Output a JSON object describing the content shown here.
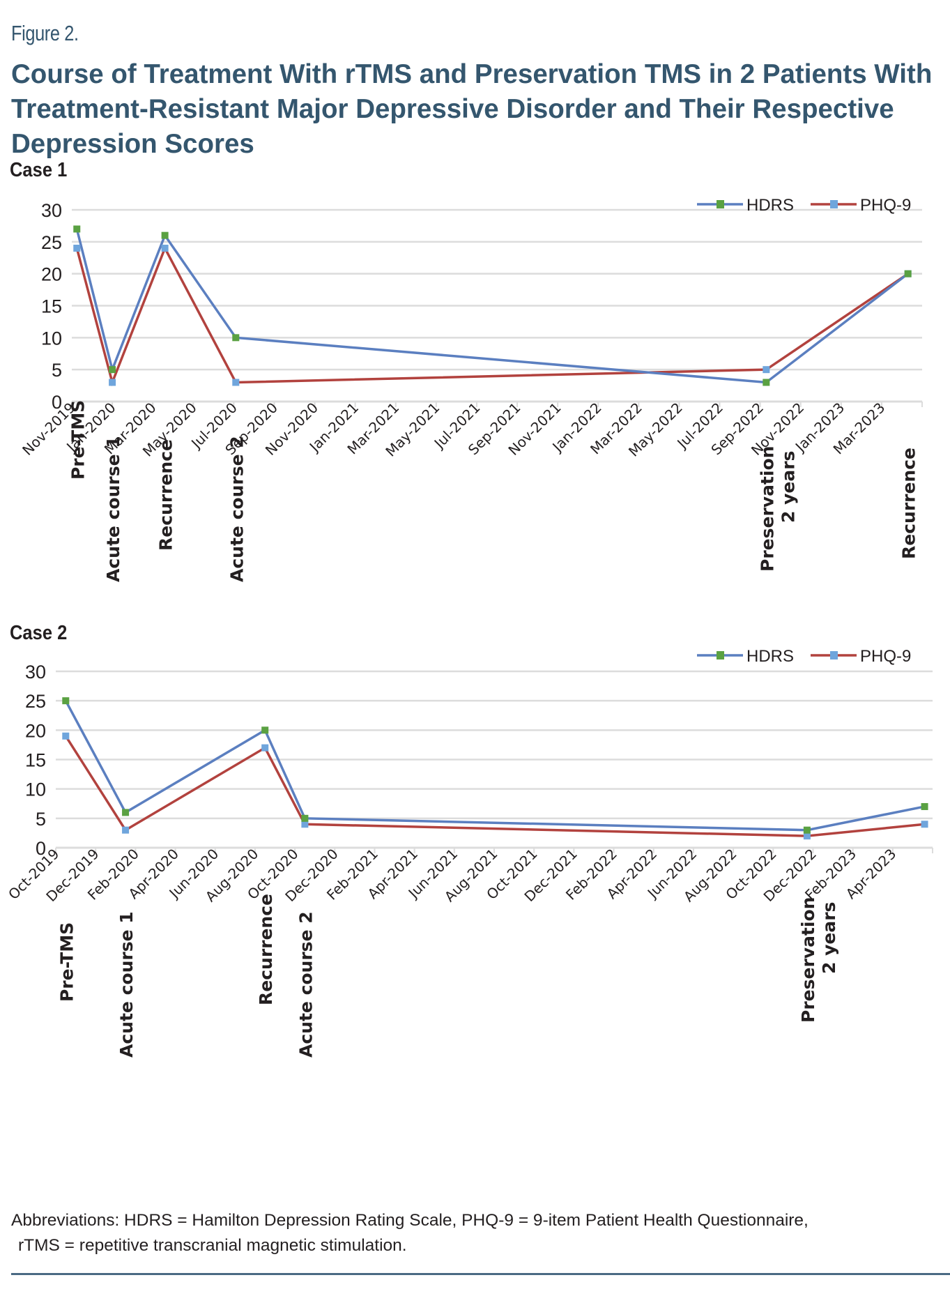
{
  "figure": {
    "label": "Figure 2.",
    "title": "Course of Treatment With rTMS and Preservation TMS in 2 Patients With Treatment-Resistant Major Depressive Disorder and Their Respective Depression Scores",
    "abbreviations_line1": "Abbreviations: HDRS = Hamilton Depression Rating Scale, PHQ-9 = 9-item Patient Health Questionnaire,",
    "abbreviations_line2": "rTMS = repetitive transcranial magnetic stimulation."
  },
  "colors": {
    "title": "#34566e",
    "hdrs_line": "#5b7fc0",
    "hdrs_marker": "#5aa142",
    "phq9_line": "#b2423e",
    "phq9_marker": "#6fa5dc",
    "grid": "#dcdcdc"
  },
  "chart_data": [
    {
      "type": "line",
      "title": "Case 1",
      "xlabel": "",
      "ylabel": "",
      "ylim": [
        0,
        30
      ],
      "yticks": [
        0,
        5,
        10,
        15,
        20,
        25,
        30
      ],
      "grid": true,
      "legend": "top-right",
      "x_axis_type": "date",
      "x_range": [
        "2019-11",
        "2023-05"
      ],
      "x_tick_labels": [
        "Nov-2019",
        "Jan-2020",
        "Mar-2020",
        "May-2020",
        "Jul-2020",
        "Sep-2020",
        "Nov-2020",
        "Jan-2021",
        "Mar-2021",
        "May-2021",
        "Jul-2021",
        "Sep-2021",
        "Nov-2021",
        "Jan-2022",
        "Mar-2022",
        "May-2022",
        "Jul-2022",
        "Sep-2022",
        "Nov-2022",
        "Jan-2023",
        "Mar-2023"
      ],
      "x": [
        0.25,
        2.0,
        4.6,
        8.1,
        34.3,
        41.3
      ],
      "x_units": "months since Nov-2019",
      "event_labels": [
        "Pre-TMS",
        "Acute course 1",
        "Recurrence",
        "Acute course 2",
        "Preservation\n2 years",
        "Recurrence"
      ],
      "series": [
        {
          "name": "HDRS",
          "values": [
            27,
            5,
            26,
            10,
            3,
            20
          ]
        },
        {
          "name": "PHQ-9",
          "values": [
            24,
            3,
            24,
            3,
            5,
            20
          ]
        }
      ]
    },
    {
      "type": "line",
      "title": "Case 2",
      "xlabel": "",
      "ylabel": "",
      "ylim": [
        0,
        30
      ],
      "yticks": [
        0,
        5,
        10,
        15,
        20,
        25,
        30
      ],
      "grid": true,
      "legend": "top-right",
      "x_axis_type": "date",
      "x_range": [
        "2019-10",
        "2023-06"
      ],
      "x_tick_labels": [
        "Oct-2019",
        "Dec-2019",
        "Feb-2020",
        "Apr-2020",
        "Jun-2020",
        "Aug-2020",
        "Oct-2020",
        "Dec-2020",
        "Feb-2021",
        "Apr-2021",
        "Jun-2021",
        "Aug-2021",
        "Oct-2021",
        "Dec-2021",
        "Feb-2022",
        "Apr-2022",
        "Jun-2022",
        "Aug-2022",
        "Oct-2022",
        "Dec-2022",
        "Feb-2023",
        "Apr-2023"
      ],
      "x": [
        0.5,
        3.5,
        10.5,
        12.5,
        37.7,
        43.6
      ],
      "x_units": "months since Oct-2019",
      "event_labels": [
        "Pre-TMS",
        "Acute course 1",
        "Recurrence",
        "Acute course 2",
        "Preservation\n2 years",
        ""
      ],
      "series": [
        {
          "name": "HDRS",
          "values": [
            25,
            6,
            20,
            5,
            3,
            7
          ]
        },
        {
          "name": "PHQ-9",
          "values": [
            19,
            3,
            17,
            4,
            2,
            4
          ]
        }
      ]
    }
  ]
}
